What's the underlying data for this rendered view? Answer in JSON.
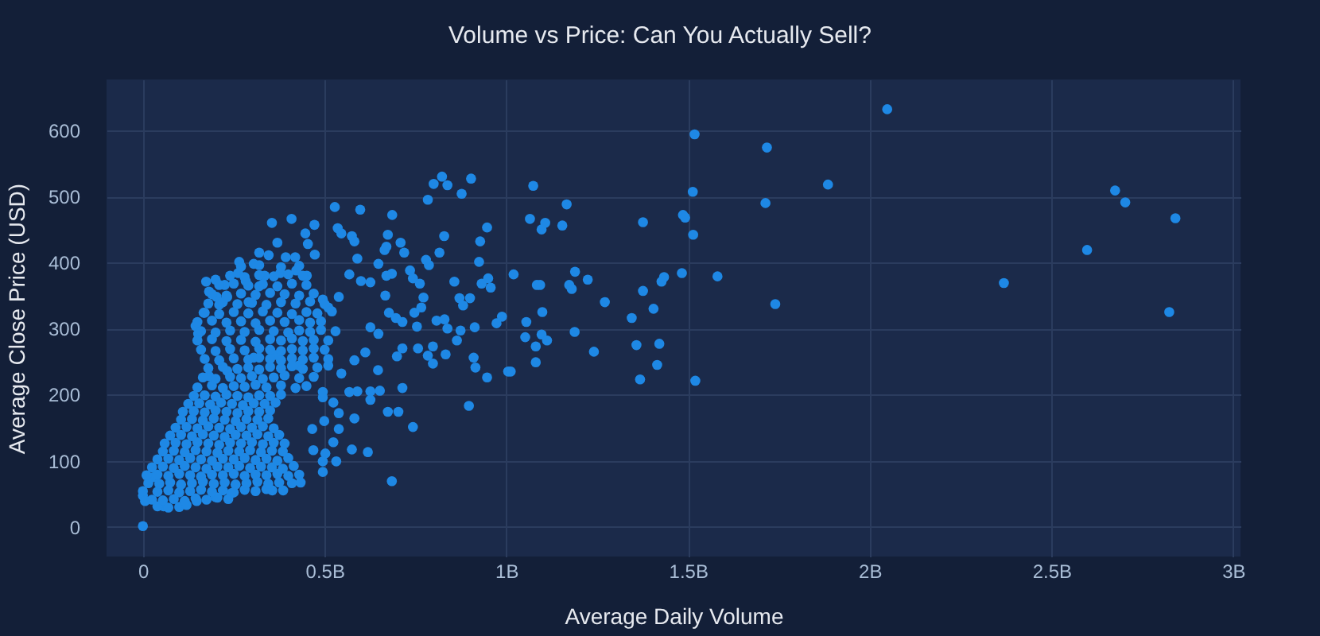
{
  "chart_data": {
    "type": "scatter",
    "title": "Volume vs Price: Can You Actually Sell?",
    "xlabel": "Average Daily Volume",
    "ylabel": "Average Close Price (USD)",
    "xlim": [
      -0.1,
      3.02
    ],
    "ylim": [
      -45,
      677
    ],
    "xticks": [
      0,
      {
        "value": 0.5,
        "label": "0.5B"
      },
      {
        "value": 1,
        "label": "1B"
      },
      {
        "value": 1.5,
        "label": "1.5B"
      },
      {
        "value": 2,
        "label": "2B"
      },
      {
        "value": 2.5,
        "label": "2.5B"
      },
      {
        "value": 3,
        "label": "3B"
      }
    ],
    "yticks": [
      0,
      100,
      200,
      300,
      400,
      500,
      600
    ],
    "grid": true,
    "marker": "circle",
    "x": [
      2.048,
      1.885,
      2.675,
      2.703,
      2.841,
      2.598,
      2.369,
      2.824,
      1.518,
      1.717,
      1.513,
      1.713,
      1.166,
      1.107,
      1.097,
      1.154,
      1.376,
      1.486,
      1.492,
      1.514,
      1.189,
      1.093,
      1.173,
      1.18,
      1.224,
      1.483,
      1.434,
      1.427,
      1.581,
      1.376,
      1.271,
      1.405,
      1.345,
      1.099,
      1.74,
      1.188,
      1.097,
      1.112,
      1.241,
      1.358,
      1.421,
      1.415,
      1.368,
      1.52,
      0.823,
      0.8,
      0.838,
      0.903,
      0.877,
      0.784,
      1.074,
      1.065,
      0.528,
      0.598,
      0.686,
      0.947,
      0.928,
      0.829,
      0.816,
      0.925,
      0.674,
      0.709,
      0.719,
      0.665,
      0.67,
      0.787,
      0.779,
      0.536,
      0.546,
      0.575,
      0.582,
      0.59,
      0.648,
      0.685,
      0.735,
      0.743,
      0.762,
      0.857,
      0.871,
      0.9,
      0.881,
      1.02,
      0.95,
      0.932,
      0.957,
      1.084,
      1.055,
      0.988,
      0.973,
      1.052,
      1.081,
      1.081,
      0.913,
      0.874,
      0.864,
      0.838,
      0.833,
      0.798,
      0.784,
      0.91,
      0.915,
      0.947,
      1.005,
      1.012,
      0.897,
      0.743,
      0.685,
      0.714,
      0.674,
      0.703,
      0.647,
      0.652,
      0.699,
      0.714,
      0.757,
      0.798,
      0.766,
      0.747,
      0.754,
      0.696,
      0.714,
      0.677,
      0.808,
      0.83,
      0.667,
      0.772,
      0.626,
      0.67,
      0.6,
      0.568,
      0.626,
      0.648,
      0.612,
      0.582,
      0.59,
      0.626,
      0.626,
      0.582,
      0.539,
      0.619,
      0.575,
      0.524,
      0.502,
      0.532,
      0.495,
      0.539,
      0.524,
      0.495,
      0.546,
      0.51,
      0.568,
      0.495,
      0.51,
      0.409,
      0.355,
      0.472,
      0.37,
      0.447,
      0.454,
      0.32,
      0.346,
      0.393,
      0.419,
      0.265,
      0.305,
      0.473,
      0.174,
      0.2,
      0.225,
      0.262,
      0.283,
      0.167,
      0.182,
      0.203,
      0.335,
      0.378,
      0.422,
      0.451,
      0.32,
      0.232,
      0.291,
      0.539,
      0,
      0,
      0.006,
      0.028,
      0.057,
      0.148,
      0.2,
      0.244,
      0.356,
      0.386,
      0.434,
      0.466,
      0.469,
      0.495,
      0.499,
      0.495,
      0.429,
      0.145,
      0.152,
      0.21,
      0.182,
      0.232,
      0.305,
      0.364,
      0.04,
      0.07,
      0.1,
      0.12,
      0.025,
      0.055,
      0.085,
      0.115,
      0.145,
      0.175,
      0.205,
      0.235,
      0.0,
      0.04,
      0.07,
      0.1,
      0.13,
      0.16,
      0.19,
      0.22,
      0.25,
      0.28,
      0.31,
      0.34,
      0.015,
      0.045,
      0.075,
      0.105,
      0.135,
      0.165,
      0.195,
      0.225,
      0.255,
      0.285,
      0.315,
      0.345,
      0.375,
      0.41,
      0.01,
      0.04,
      0.07,
      0.1,
      0.13,
      0.16,
      0.19,
      0.22,
      0.25,
      0.28,
      0.31,
      0.34,
      0.37,
      0.4,
      0.43,
      0.025,
      0.055,
      0.085,
      0.115,
      0.145,
      0.175,
      0.205,
      0.235,
      0.265,
      0.295,
      0.325,
      0.355,
      0.385,
      0.415,
      0.04,
      0.07,
      0.1,
      0.13,
      0.16,
      0.19,
      0.22,
      0.25,
      0.28,
      0.31,
      0.34,
      0.37,
      0.4,
      0.055,
      0.085,
      0.115,
      0.145,
      0.175,
      0.205,
      0.235,
      0.265,
      0.295,
      0.325,
      0.355,
      0.385,
      0.06,
      0.09,
      0.12,
      0.15,
      0.18,
      0.21,
      0.24,
      0.27,
      0.3,
      0.33,
      0.36,
      0.39,
      0.075,
      0.105,
      0.135,
      0.165,
      0.195,
      0.225,
      0.255,
      0.285,
      0.315,
      0.345,
      0.375,
      0.09,
      0.12,
      0.15,
      0.18,
      0.21,
      0.24,
      0.27,
      0.3,
      0.33,
      0.36,
      0.105,
      0.135,
      0.165,
      0.195,
      0.225,
      0.255,
      0.285,
      0.315,
      0.345,
      0.11,
      0.14,
      0.17,
      0.2,
      0.23,
      0.26,
      0.29,
      0.32,
      0.35,
      0.125,
      0.155,
      0.185,
      0.215,
      0.245,
      0.275,
      0.305,
      0.335,
      0.365,
      0.14,
      0.17,
      0.2,
      0.23,
      0.26,
      0.29,
      0.32,
      0.35,
      0.38,
      0.15,
      0.19,
      0.22,
      0.25,
      0.28,
      0.31,
      0.34,
      0.38,
      0.42,
      0.45,
      0.165,
      0.2,
      0.24,
      0.27,
      0.3,
      0.33,
      0.36,
      0.39,
      0.43,
      0.47,
      0.18,
      0.22,
      0.26,
      0.29,
      0.32,
      0.35,
      0.38,
      0.41,
      0.44,
      0.48,
      0.17,
      0.21,
      0.25,
      0.29,
      0.32,
      0.35,
      0.38,
      0.41,
      0.44,
      0.47,
      0.51,
      0.16,
      0.2,
      0.24,
      0.28,
      0.32,
      0.35,
      0.38,
      0.41,
      0.44,
      0.47,
      0.5,
      0.15,
      0.19,
      0.23,
      0.27,
      0.31,
      0.35,
      0.38,
      0.41,
      0.44,
      0.47,
      0.51,
      0.16,
      0.2,
      0.24,
      0.28,
      0.32,
      0.36,
      0.4,
      0.43,
      0.46,
      0.49,
      0.53,
      0.15,
      0.19,
      0.23,
      0.27,
      0.31,
      0.35,
      0.39,
      0.43,
      0.46,
      0.49,
      0.17,
      0.21,
      0.25,
      0.29,
      0.33,
      0.37,
      0.41,
      0.45,
      0.48,
      0.52,
      0.18,
      0.22,
      0.26,
      0.3,
      0.34,
      0.38,
      0.42,
      0.46,
      0.5,
      0.19,
      0.23,
      0.27,
      0.31,
      0.35,
      0.39,
      0.43,
      0.47,
      0.21,
      0.25,
      0.29,
      0.33,
      0.37,
      0.41,
      0.45,
      0.24,
      0.28,
      0.32,
      0.36,
      0.4,
      0.44,
      0.27,
      0.32,
      0.38,
      0.43
    ],
    "series": [
      {
        "color": "#1e88e5",
        "values": [
          632,
          518,
          509,
          491,
          467,
          419,
          369,
          325,
          594,
          574,
          507,
          490,
          488,
          460,
          450,
          456,
          461,
          472,
          468,
          442,
          386,
          366,
          366,
          360,
          374,
          384,
          378,
          371,
          379,
          357,
          340,
          330,
          316,
          325,
          337,
          295,
          291,
          282,
          265,
          275,
          277,
          245,
          223,
          221,
          530,
          519,
          517,
          527,
          504,
          495,
          516,
          466,
          484,
          480,
          472,
          453,
          432,
          440,
          415,
          401,
          442,
          430,
          415,
          419,
          424,
          396,
          404,
          452,
          444,
          440,
          432,
          406,
          398,
          383,
          388,
          376,
          368,
          371,
          346,
          346,
          335,
          382,
          376,
          368,
          362,
          366,
          310,
          318,
          308,
          287,
          273,
          249,
          302,
          297,
          282,
          300,
          261,
          247,
          259,
          256,
          241,
          226,
          235,
          235,
          183,
          151,
          69,
          210,
          174,
          174,
          237,
          206,
          258,
          270,
          270,
          273,
          332,
          324,
          303,
          316,
          310,
          324,
          312,
          314,
          350,
          347,
          370,
          380,
          372,
          382,
          302,
          292,
          264,
          252,
          205,
          205,
          192,
          164,
          148,
          113,
          117,
          128,
          111,
          99,
          83,
          172,
          188,
          196,
          232,
          244,
          204,
          344,
          332,
          466,
          460,
          457,
          430,
          444,
          428,
          415,
          411,
          408,
          408,
          401,
          398,
          412,
          371,
          374,
          366,
          384,
          372,
          324,
          356,
          348,
          380,
          384,
          388,
          380,
          364,
          348,
          340,
          348,
          1,
          47,
          39,
          75,
          31,
          39,
          45,
          51,
          55,
          55,
          67,
          148,
          116,
          99,
          160,
          204,
          244,
          304,
          292,
          336,
          228,
          236,
          256,
          260,
          31,
          29,
          30,
          33,
          41,
          40,
          42,
          39,
          43,
          41,
          44,
          42,
          54,
          53,
          55,
          52,
          54,
          56,
          53,
          55,
          52,
          56,
          54,
          57,
          66,
          65,
          67,
          64,
          66,
          68,
          65,
          67,
          64,
          66,
          68,
          65,
          67,
          66,
          78,
          79,
          77,
          80,
          78,
          76,
          79,
          78,
          80,
          77,
          79,
          78,
          80,
          77,
          79,
          90,
          91,
          89,
          92,
          90,
          88,
          91,
          90,
          92,
          89,
          91,
          90,
          88,
          92,
          102,
          103,
          101,
          104,
          102,
          100,
          103,
          102,
          104,
          101,
          103,
          100,
          104,
          114,
          115,
          113,
          116,
          114,
          112,
          115,
          114,
          116,
          113,
          115,
          114,
          126,
          127,
          125,
          128,
          126,
          124,
          127,
          126,
          128,
          125,
          127,
          126,
          138,
          139,
          137,
          140,
          138,
          136,
          139,
          138,
          140,
          137,
          139,
          150,
          151,
          149,
          152,
          150,
          148,
          151,
          150,
          152,
          149,
          162,
          163,
          161,
          164,
          162,
          160,
          163,
          162,
          164,
          174,
          175,
          173,
          176,
          174,
          172,
          175,
          174,
          176,
          186,
          187,
          185,
          188,
          186,
          184,
          187,
          186,
          188,
          198,
          199,
          197,
          200,
          198,
          196,
          199,
          198,
          200,
          211,
          214,
          210,
          213,
          212,
          215,
          211,
          214,
          210,
          213,
          226,
          224,
          227,
          225,
          228,
          224,
          226,
          229,
          225,
          227,
          240,
          242,
          239,
          241,
          238,
          242,
          240,
          243,
          239,
          241,
          254,
          252,
          255,
          253,
          256,
          254,
          252,
          255,
          253,
          256,
          254,
          268,
          266,
          269,
          267,
          270,
          268,
          266,
          269,
          267,
          270,
          268,
          282,
          284,
          281,
          283,
          280,
          284,
          282,
          285,
          281,
          283,
          282,
          296,
          294,
          297,
          295,
          298,
          296,
          294,
          297,
          295,
          298,
          296,
          310,
          312,
          309,
          311,
          308,
          312,
          310,
          313,
          309,
          311,
          324,
          322,
          325,
          323,
          326,
          324,
          322,
          325,
          323,
          326,
          338,
          340,
          337,
          339,
          336,
          340,
          338,
          341,
          337,
          352,
          350,
          353,
          351,
          354,
          352,
          350,
          353,
          366,
          368,
          365,
          367,
          364,
          368,
          366,
          380,
          378,
          381,
          379,
          382,
          380,
          394,
          396,
          393,
          395
        ]
      }
    ]
  }
}
